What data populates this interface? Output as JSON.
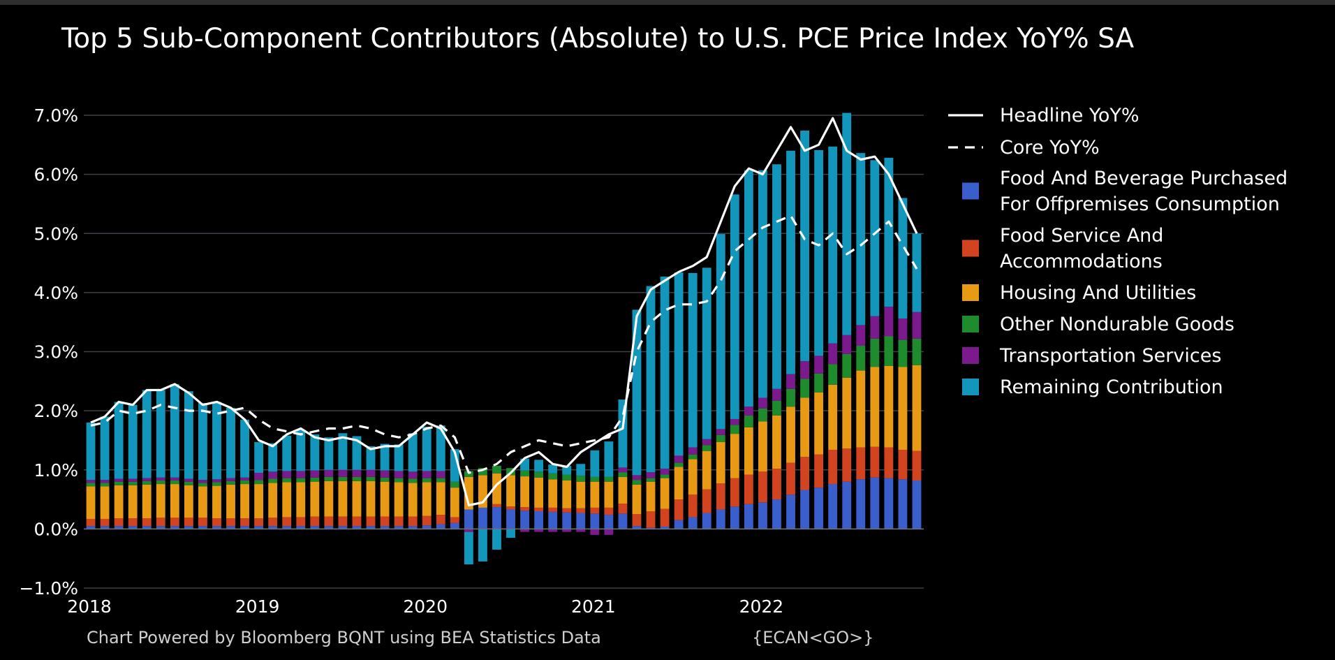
{
  "chart_data": {
    "type": "bar",
    "subtype": "stacked bar with line overlays",
    "title": "Top 5 Sub-Component Contributors (Absolute) to U.S. PCE Price Index YoY% SA",
    "footer": "Chart Powered by Bloomberg BQNT using BEA Statistics Data",
    "footer_code": "{ECAN<GO>}",
    "xlabel": "",
    "ylabel": "",
    "ylim": [
      -1.0,
      7.0
    ],
    "y_ticks": [
      "7.0%",
      "6.0%",
      "5.0%",
      "4.0%",
      "3.0%",
      "2.0%",
      "1.0%",
      "0.0%",
      "−1.0%"
    ],
    "y_tick_values": [
      7,
      6,
      5,
      4,
      3,
      2,
      1,
      0,
      -1
    ],
    "x_ticks": [
      "2018",
      "2019",
      "2020",
      "2021",
      "2022"
    ],
    "x_tick_indices": [
      0,
      12,
      24,
      36,
      48
    ],
    "legend_position": "right",
    "x": [
      "2018-01",
      "2018-02",
      "2018-03",
      "2018-04",
      "2018-05",
      "2018-06",
      "2018-07",
      "2018-08",
      "2018-09",
      "2018-10",
      "2018-11",
      "2018-12",
      "2019-01",
      "2019-02",
      "2019-03",
      "2019-04",
      "2019-05",
      "2019-06",
      "2019-07",
      "2019-08",
      "2019-09",
      "2019-10",
      "2019-11",
      "2019-12",
      "2020-01",
      "2020-02",
      "2020-03",
      "2020-04",
      "2020-05",
      "2020-06",
      "2020-07",
      "2020-08",
      "2020-09",
      "2020-10",
      "2020-11",
      "2020-12",
      "2021-01",
      "2021-02",
      "2021-03",
      "2021-04",
      "2021-05",
      "2021-06",
      "2021-07",
      "2021-08",
      "2021-09",
      "2021-10",
      "2021-11",
      "2021-12",
      "2022-01",
      "2022-02",
      "2022-03",
      "2022-04",
      "2022-05",
      "2022-06",
      "2022-07",
      "2022-08",
      "2022-09",
      "2022-10",
      "2022-11",
      "2022-12"
    ],
    "series": [
      {
        "name": "Food And Beverage Purchased For Offpremises Consumption",
        "kind": "bar",
        "color": "#3a5fcd",
        "values": [
          0.05,
          0.05,
          0.05,
          0.05,
          0.05,
          0.05,
          0.05,
          0.05,
          0.05,
          0.05,
          0.05,
          0.05,
          0.05,
          0.05,
          0.05,
          0.05,
          0.05,
          0.05,
          0.05,
          0.05,
          0.05,
          0.05,
          0.05,
          0.05,
          0.06,
          0.08,
          0.1,
          0.33,
          0.36,
          0.37,
          0.33,
          0.31,
          0.3,
          0.29,
          0.28,
          0.27,
          0.26,
          0.24,
          0.26,
          0.05,
          0.02,
          0.04,
          0.15,
          0.2,
          0.27,
          0.33,
          0.38,
          0.42,
          0.45,
          0.5,
          0.58,
          0.66,
          0.7,
          0.76,
          0.8,
          0.84,
          0.87,
          0.86,
          0.84,
          0.82
        ]
      },
      {
        "name": "Food Service And Accommodations",
        "kind": "bar",
        "color": "#d2431f",
        "values": [
          0.12,
          0.12,
          0.13,
          0.13,
          0.13,
          0.14,
          0.14,
          0.14,
          0.14,
          0.13,
          0.13,
          0.13,
          0.13,
          0.14,
          0.15,
          0.15,
          0.16,
          0.16,
          0.16,
          0.16,
          0.16,
          0.16,
          0.16,
          0.16,
          0.16,
          0.16,
          0.1,
          0.0,
          0.0,
          0.05,
          0.05,
          0.06,
          0.06,
          0.07,
          0.07,
          0.08,
          0.1,
          0.12,
          0.17,
          0.2,
          0.28,
          0.3,
          0.35,
          0.38,
          0.4,
          0.44,
          0.48,
          0.5,
          0.52,
          0.52,
          0.54,
          0.56,
          0.56,
          0.58,
          0.56,
          0.54,
          0.52,
          0.52,
          0.5,
          0.5
        ]
      },
      {
        "name": "Housing And Utilities",
        "kind": "bar",
        "color": "#e89a14",
        "values": [
          0.55,
          0.55,
          0.56,
          0.56,
          0.57,
          0.57,
          0.57,
          0.55,
          0.53,
          0.55,
          0.57,
          0.58,
          0.58,
          0.59,
          0.59,
          0.59,
          0.59,
          0.6,
          0.6,
          0.6,
          0.6,
          0.59,
          0.58,
          0.57,
          0.57,
          0.55,
          0.5,
          0.55,
          0.55,
          0.52,
          0.53,
          0.52,
          0.51,
          0.48,
          0.47,
          0.45,
          0.44,
          0.44,
          0.45,
          0.5,
          0.5,
          0.52,
          0.55,
          0.6,
          0.65,
          0.7,
          0.75,
          0.8,
          0.85,
          0.9,
          0.95,
          1.0,
          1.05,
          1.1,
          1.2,
          1.3,
          1.35,
          1.38,
          1.4,
          1.45
        ]
      },
      {
        "name": "Other Nondurable Goods",
        "kind": "bar",
        "color": "#1e8c2c",
        "values": [
          0.06,
          0.06,
          0.06,
          0.06,
          0.06,
          0.06,
          0.06,
          0.06,
          0.06,
          0.06,
          0.06,
          0.06,
          0.07,
          0.07,
          0.07,
          0.07,
          0.07,
          0.07,
          0.07,
          0.07,
          0.07,
          0.07,
          0.07,
          0.07,
          0.07,
          0.07,
          0.1,
          0.1,
          0.12,
          0.13,
          0.12,
          0.1,
          0.1,
          0.1,
          0.1,
          0.1,
          0.08,
          0.08,
          0.08,
          0.08,
          0.06,
          0.06,
          0.07,
          0.08,
          0.1,
          0.12,
          0.15,
          0.2,
          0.22,
          0.25,
          0.3,
          0.32,
          0.32,
          0.35,
          0.4,
          0.42,
          0.48,
          0.5,
          0.46,
          0.45
        ]
      },
      {
        "name": "Transportation Services",
        "kind": "bar",
        "color": "#7a1a8c",
        "values": [
          0.05,
          0.05,
          0.05,
          0.05,
          0.05,
          0.05,
          0.05,
          0.05,
          0.05,
          0.05,
          0.05,
          0.05,
          0.12,
          0.12,
          0.12,
          0.12,
          0.12,
          0.12,
          0.12,
          0.12,
          0.12,
          0.12,
          0.12,
          0.12,
          0.12,
          0.12,
          0.0,
          -0.05,
          0.0,
          0.0,
          0.0,
          -0.05,
          -0.05,
          -0.05,
          -0.05,
          -0.05,
          -0.1,
          -0.1,
          0.08,
          0.08,
          0.1,
          0.1,
          0.12,
          0.12,
          0.1,
          0.1,
          0.1,
          0.15,
          0.18,
          0.2,
          0.25,
          0.3,
          0.3,
          0.35,
          0.32,
          0.35,
          0.38,
          0.5,
          0.36,
          0.45
        ]
      },
      {
        "name": "Remaining Contribution",
        "kind": "bar",
        "color": "#1396bc",
        "values": [
          0.97,
          1.07,
          1.3,
          1.25,
          1.49,
          1.48,
          1.58,
          1.48,
          1.3,
          1.31,
          1.19,
          0.98,
          0.52,
          0.48,
          0.6,
          0.7,
          0.61,
          0.55,
          0.62,
          0.57,
          0.4,
          0.45,
          0.45,
          0.65,
          0.75,
          0.77,
          0.55,
          -0.55,
          -0.55,
          -0.35,
          -0.15,
          0.2,
          0.2,
          0.15,
          0.15,
          0.2,
          0.45,
          0.6,
          1.15,
          2.8,
          3.15,
          3.25,
          3.1,
          2.95,
          2.9,
          3.3,
          3.8,
          4.0,
          3.85,
          3.8,
          3.78,
          3.9,
          3.48,
          3.33,
          3.76,
          2.91,
          2.64,
          2.52,
          2.04,
          1.33
        ]
      },
      {
        "name": "Headline YoY%",
        "kind": "line",
        "style": "solid",
        "color": "#ffffff",
        "values": [
          1.8,
          1.9,
          2.15,
          2.1,
          2.35,
          2.35,
          2.45,
          2.3,
          2.1,
          2.15,
          2.05,
          1.85,
          1.5,
          1.4,
          1.6,
          1.7,
          1.55,
          1.5,
          1.55,
          1.5,
          1.35,
          1.4,
          1.4,
          1.6,
          1.8,
          1.7,
          1.3,
          0.4,
          0.45,
          0.75,
          0.95,
          1.2,
          1.3,
          1.1,
          1.05,
          1.3,
          1.45,
          1.6,
          1.7,
          3.6,
          4.05,
          4.2,
          4.35,
          4.45,
          4.6,
          5.2,
          5.8,
          6.1,
          6.0,
          6.4,
          6.8,
          6.4,
          6.5,
          6.95,
          6.4,
          6.25,
          6.3,
          6.0,
          5.5,
          5.0
        ]
      },
      {
        "name": "Core YoY%",
        "kind": "line",
        "style": "dashed",
        "color": "#ffffff",
        "values": [
          1.75,
          1.8,
          2.0,
          1.95,
          2.0,
          2.1,
          2.05,
          2.0,
          2.0,
          1.95,
          2.0,
          2.05,
          1.85,
          1.7,
          1.65,
          1.6,
          1.65,
          1.7,
          1.7,
          1.75,
          1.7,
          1.6,
          1.55,
          1.6,
          1.7,
          1.75,
          1.55,
          0.95,
          1.0,
          1.1,
          1.3,
          1.4,
          1.5,
          1.45,
          1.4,
          1.45,
          1.5,
          1.55,
          1.9,
          3.0,
          3.5,
          3.7,
          3.8,
          3.8,
          3.85,
          4.2,
          4.7,
          4.9,
          5.1,
          5.2,
          5.3,
          4.9,
          4.8,
          5.0,
          4.65,
          4.8,
          5.0,
          5.2,
          4.8,
          4.4
        ]
      }
    ]
  }
}
